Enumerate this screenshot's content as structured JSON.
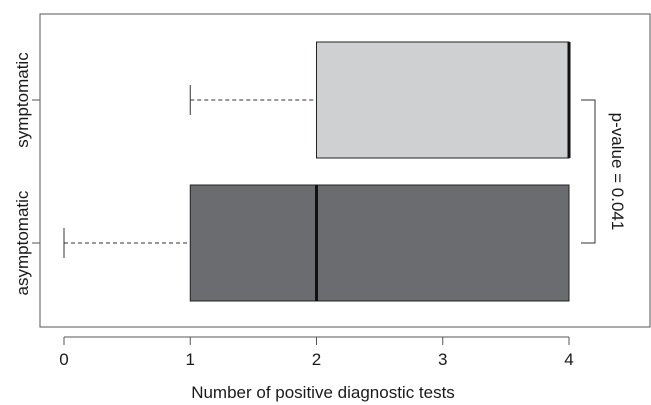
{
  "chart_data": {
    "type": "boxplot",
    "orientation": "horizontal",
    "xlabel": "Number of positive diagnostic tests",
    "ylabel": "",
    "xlim": [
      -0.2,
      4.6
    ],
    "xticks": [
      0,
      1,
      2,
      3,
      4
    ],
    "grid": false,
    "categories": [
      "asymptomatic",
      "symptomatic"
    ],
    "boxes": [
      {
        "category": "asymptomatic",
        "whisker_low": 0,
        "q1": 1,
        "median": 2,
        "q3": 4,
        "whisker_high": 4,
        "color": "#6b6c70"
      },
      {
        "category": "symptomatic",
        "whisker_low": 1,
        "q1": 2,
        "median": 4,
        "q3": 4,
        "whisker_high": 4,
        "color": "#cfd0d2"
      }
    ],
    "annotation": {
      "text": "p-value = 0.041"
    }
  }
}
